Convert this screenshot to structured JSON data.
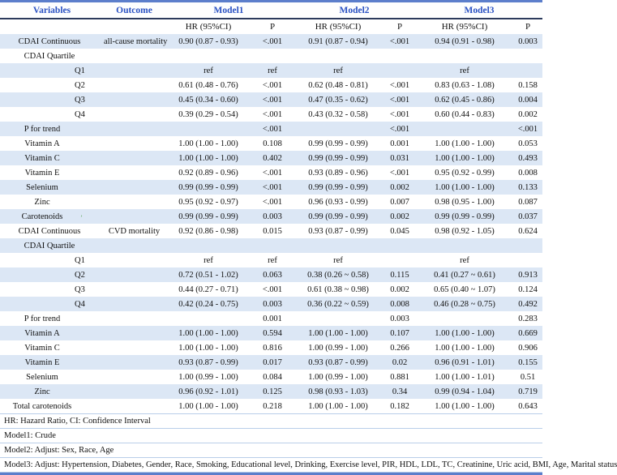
{
  "table": {
    "header": {
      "variables": "Variables",
      "outcome": "Outcome",
      "model1": "Model1",
      "model2": "Model2",
      "model3": "Model3",
      "hr_label": "HR (95%CI)",
      "p_label": "P"
    },
    "rows": [
      {
        "variable": "CDAI Continuous",
        "level": 0,
        "outcome": "all-cause mortality",
        "values": [
          "0.90 (0.87 - 0.93)",
          "<.001",
          "0.91 (0.87 - 0.94)",
          "<.001",
          "0.94 (0.91 - 0.98)",
          "0.003"
        ]
      },
      {
        "variable": "CDAI Quartile",
        "level": 0,
        "outcome": "",
        "values": [
          "",
          "",
          "",
          "",
          "",
          ""
        ]
      },
      {
        "variable": "Q1",
        "level": 2,
        "outcome": "",
        "values": [
          "ref",
          "ref",
          "ref",
          "",
          "ref",
          ""
        ]
      },
      {
        "variable": "Q2",
        "level": 2,
        "outcome": "",
        "values": [
          "0.61 (0.48 - 0.76)",
          "<.001",
          "0.62 (0.48 - 0.81)",
          "<.001",
          "0.83 (0.63 - 1.08)",
          "0.158"
        ]
      },
      {
        "variable": "Q3",
        "level": 2,
        "outcome": "",
        "values": [
          "0.45 (0.34 - 0.60)",
          "<.001",
          "0.47 (0.35 - 0.62)",
          "<.001",
          "0.62 (0.45 - 0.86)",
          "0.004"
        ]
      },
      {
        "variable": "Q4",
        "level": 2,
        "outcome": "",
        "values": [
          "0.39 (0.29 - 0.54)",
          "<.001",
          "0.43 (0.32 - 0.58)",
          "<.001",
          "0.60 (0.44 - 0.83)",
          "0.002"
        ]
      },
      {
        "variable": "P for trend",
        "level": 1,
        "outcome": "",
        "values": [
          "",
          "<.001",
          "",
          "<.001",
          "",
          "<.001"
        ]
      },
      {
        "variable": "Vitamin A",
        "level": 1,
        "outcome": "",
        "values": [
          "1.00 (1.00 - 1.00)",
          "0.108",
          "0.99 (0.99 - 0.99)",
          "0.001",
          "1.00 (1.00 - 1.00)",
          "0.053"
        ]
      },
      {
        "variable": "Vitamin C",
        "level": 1,
        "outcome": "",
        "values": [
          "1.00 (1.00 - 1.00)",
          "0.402",
          "0.99 (0.99 - 0.99)",
          "0.031",
          "1.00 (1.00 - 1.00)",
          "0.493"
        ]
      },
      {
        "variable": "Vitamin E",
        "level": 1,
        "outcome": "",
        "values": [
          "0.92 (0.89 - 0.96)",
          "<.001",
          "0.93 (0.89 - 0.96)",
          "<.001",
          "0.95 (0.92 - 0.99)",
          "0.008"
        ]
      },
      {
        "variable": "Selenium",
        "level": 1,
        "outcome": "",
        "values": [
          "0.99 (0.99 - 0.99)",
          "<.001",
          "0.99 (0.99 - 0.99)",
          "0.002",
          "1.00 (1.00 - 1.00)",
          "0.133"
        ]
      },
      {
        "variable": "Zinc",
        "level": 1,
        "outcome": "",
        "values": [
          "0.95 (0.92 - 0.97)",
          "<.001",
          "0.96 (0.93 - 0.99)",
          "0.007",
          "0.98 (0.95 - 1.00)",
          "0.087"
        ]
      },
      {
        "variable": "Carotenoids",
        "level": 1,
        "outcome": "",
        "values": [
          "0.99 (0.99 - 0.99)",
          "0.003",
          "0.99 (0.99 - 0.99)",
          "0.002",
          "0.99 (0.99 - 0.99)",
          "0.037"
        ]
      },
      {
        "variable": "CDAI Continuous",
        "level": 0,
        "outcome": "CVD mortality",
        "values": [
          "0.92 (0.86 - 0.98)",
          "0.015",
          "0.93 (0.87 - 0.99)",
          "0.045",
          "0.98 (0.92 - 1.05)",
          "0.624"
        ]
      },
      {
        "variable": "CDAI Quartile",
        "level": 0,
        "outcome": "",
        "values": [
          "",
          "",
          "",
          "",
          "",
          ""
        ]
      },
      {
        "variable": "Q1",
        "level": 2,
        "outcome": "",
        "values": [
          "ref",
          "ref",
          "ref",
          "",
          "ref",
          ""
        ]
      },
      {
        "variable": "Q2",
        "level": 2,
        "outcome": "",
        "values": [
          "0.72 (0.51 - 1.02)",
          "0.063",
          "0.38 (0.26 ~ 0.58)",
          "0.115",
          "0.41 (0.27 ~ 0.61)",
          "0.913"
        ]
      },
      {
        "variable": "Q3",
        "level": 2,
        "outcome": "",
        "values": [
          "0.44 (0.27 - 0.71)",
          "<.001",
          "0.61 (0.38 ~ 0.98)",
          "0.002",
          "0.65 (0.40 ~ 1.07)",
          "0.124"
        ]
      },
      {
        "variable": "Q4",
        "level": 2,
        "outcome": "",
        "values": [
          "0.42 (0.24 - 0.75)",
          "0.003",
          "0.36 (0.22 ~ 0.59)",
          "0.008",
          "0.46 (0.28 ~ 0.75)",
          "0.492"
        ]
      },
      {
        "variable": "P for trend",
        "level": 1,
        "outcome": "",
        "values": [
          "",
          "0.001",
          "",
          "0.003",
          "",
          "0.283"
        ]
      },
      {
        "variable": "Vitamin A",
        "level": 1,
        "outcome": "",
        "values": [
          "1.00 (1.00 - 1.00)",
          "0.594",
          "1.00 (1.00 - 1.00)",
          "0.107",
          "1.00 (1.00 - 1.00)",
          "0.669"
        ]
      },
      {
        "variable": "Vitamin C",
        "level": 1,
        "outcome": "",
        "values": [
          "1.00 (1.00 - 1.00)",
          "0.816",
          "1.00 (0.99 - 1.00)",
          "0.266",
          "1.00 (1.00 - 1.00)",
          "0.906"
        ]
      },
      {
        "variable": "Vitamin E",
        "level": 1,
        "outcome": "",
        "values": [
          "0.93 (0.87 - 0.99)",
          "0.017",
          "0.93 (0.87 - 0.99)",
          "0.02",
          "0.96 (0.91 - 1.01)",
          "0.155"
        ]
      },
      {
        "variable": "Selenium",
        "level": 1,
        "outcome": "",
        "values": [
          "1.00 (0.99 - 1.00)",
          "0.084",
          "1.00 (0.99 - 1.00)",
          "0.881",
          "1.00 (1.00 - 1.01)",
          "0.51"
        ]
      },
      {
        "variable": "Zinc",
        "level": 1,
        "outcome": "",
        "values": [
          "0.96 (0.92 - 1.01)",
          "0.125",
          "0.98 (0.93 - 1.03)",
          "0.34",
          "0.99 (0.94 - 1.04)",
          "0.719"
        ]
      },
      {
        "variable": "Total carotenoids",
        "level": 1,
        "outcome": "",
        "values": [
          "1.00 (1.00 - 1.00)",
          "0.218",
          "1.00 (1.00 - 1.00)",
          "0.182",
          "1.00 (1.00 - 1.00)",
          "0.643"
        ]
      }
    ],
    "footnotes": [
      "HR: Hazard Ratio, CI: Confidence Interval",
      "Model1: Crude",
      "Model2: Adjust: Sex, Race, Age",
      "Model3: Adjust: Hypertension, Diabetes, Gender, Race, Smoking, Educational level, Drinking, Exercise level, PIR, HDL, LDL, TC, Creatinine, Uric acid, BMI, Age, Marital status"
    ]
  },
  "artifact": {
    "stray_mark": "’"
  },
  "colors": {
    "header_text": "#2a52c3",
    "top_border": "#5b7ecb",
    "header_underline": "#2b3a5c",
    "row_stripe": "#dce7f5",
    "footnote_separator": "#b9cee9",
    "bottom_border": "#5b7ecb",
    "body_text": "#111111"
  }
}
